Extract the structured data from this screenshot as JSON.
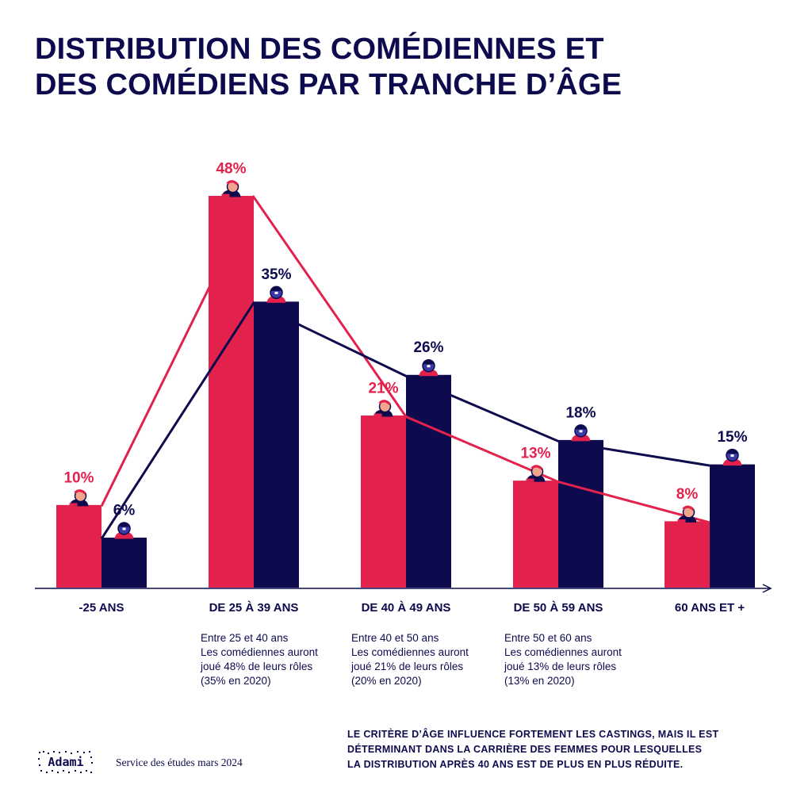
{
  "title": {
    "line1": "DISTRIBUTION DES COMÉDIENNES ET",
    "line2": "DES COMÉDIENS PAR TRANCHE D’ÂGE"
  },
  "colors": {
    "women": "#e2224c",
    "men": "#0d0b4e",
    "text": "#0d0b4e"
  },
  "chart_data": {
    "type": "bar",
    "categories": [
      "-25 ANS",
      "DE 25 À 39 ANS",
      "DE 40 À 49 ANS",
      "DE 50 À 59 ANS",
      "60 ANS ET +"
    ],
    "series": [
      {
        "values": [
          10,
          48,
          21,
          13,
          8
        ],
        "labels": [
          "10%",
          "48%",
          "21%",
          "13%",
          "8%"
        ],
        "color": "#e2224c"
      },
      {
        "values": [
          6,
          35,
          26,
          18,
          15
        ],
        "labels": [
          "6%",
          "35%",
          "26%",
          "18%",
          "15%"
        ],
        "color": "#0d0b4e"
      }
    ],
    "ylim": [
      0,
      50
    ],
    "grid": false,
    "legend": "none"
  },
  "notes": [
    {
      "line1": "Entre 25 et 40 ans",
      "line2": "Les comédiennes auront",
      "line3": "joué 48% de leurs rôles",
      "line4": "(35% en 2020)"
    },
    {
      "line1": "Entre 40 et 50 ans",
      "line2": "Les comédiennes auront",
      "line3": "joué 21% de leurs rôles",
      "line4": "(20% en 2020)"
    },
    {
      "line1": "Entre 50 et 60 ans",
      "line2": "Les comédiennes auront",
      "line3": "joué 13% de leurs rôles",
      "line4": "(13% en 2020)"
    }
  ],
  "footer": {
    "logo": "Adami",
    "source": "Service des études mars 2024",
    "conclusion_line1": "LE CRITÈRE D’ÂGE INFLUENCE FORTEMENT LES CASTINGS, MAIS IL EST",
    "conclusion_line2": "DÉTERMINANT DANS LA CARRIÈRE DES FEMMES POUR LESQUELLES",
    "conclusion_line3": "LA DISTRIBUTION APRÈS 40 ANS EST DE PLUS EN PLUS RÉDUITE."
  }
}
